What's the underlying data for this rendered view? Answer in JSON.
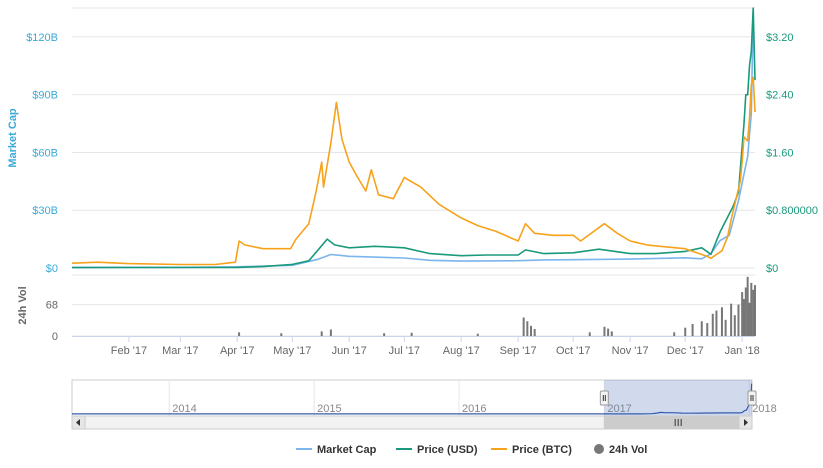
{
  "chart_data": {
    "type": "line",
    "legend_position": "bottom",
    "grid": true,
    "x_tick_labels": [
      "Feb '17",
      "Mar '17",
      "Apr '17",
      "May '17",
      "Jun '17",
      "Jul '17",
      "Aug '17",
      "Sep '17",
      "Oct '17",
      "Nov '17",
      "Dec '17",
      "Jan '18"
    ],
    "x_range": [
      "2017-01-01",
      "2018-01-08"
    ],
    "y_left": {
      "label": "Market Cap",
      "ticks": [
        "$0",
        "$30B",
        "$60B",
        "$90B",
        "$120B"
      ],
      "range": [
        0,
        120
      ],
      "unit": "B USD"
    },
    "y_right": {
      "ticks": [
        "$0",
        "$0.800000",
        "$1.60",
        "$2.40",
        "$3.20"
      ],
      "range": [
        0,
        3.2
      ],
      "unit": "USD"
    },
    "volume_axis": {
      "label": "24h Vol",
      "ticks": [
        "0",
        "68"
      ]
    },
    "series": [
      {
        "name": "Market Cap",
        "axis": "left",
        "color": "#7cb5ec",
        "points": [
          [
            "2017-01-01",
            0.3
          ],
          [
            "2017-03-01",
            0.35
          ],
          [
            "2017-04-01",
            0.6
          ],
          [
            "2017-05-01",
            1.4
          ],
          [
            "2017-05-15",
            4.5
          ],
          [
            "2017-05-22",
            7
          ],
          [
            "2017-06-01",
            6.1
          ],
          [
            "2017-07-01",
            5.2
          ],
          [
            "2017-07-15",
            4
          ],
          [
            "2017-08-01",
            3.6
          ],
          [
            "2017-09-01",
            3.8
          ],
          [
            "2017-09-15",
            4.2
          ],
          [
            "2017-10-01",
            4.3
          ],
          [
            "2017-11-01",
            4.6
          ],
          [
            "2017-12-01",
            5.3
          ],
          [
            "2017-12-10",
            4.8
          ],
          [
            "2017-12-15",
            7.4
          ],
          [
            "2017-12-20",
            14.3
          ],
          [
            "2017-12-25",
            17
          ],
          [
            "2017-12-30",
            35
          ],
          [
            "2018-01-04",
            58
          ],
          [
            "2018-01-06",
            80
          ],
          [
            "2018-01-07",
            133
          ]
        ]
      },
      {
        "name": "Price (USD)",
        "axis": "right",
        "color": "#1a9a7c",
        "points": [
          [
            "2017-01-01",
            0.006
          ],
          [
            "2017-02-01",
            0.007
          ],
          [
            "2017-03-01",
            0.007
          ],
          [
            "2017-04-01",
            0.008
          ],
          [
            "2017-04-15",
            0.02
          ],
          [
            "2017-05-01",
            0.05
          ],
          [
            "2017-05-10",
            0.1
          ],
          [
            "2017-05-16",
            0.28
          ],
          [
            "2017-05-20",
            0.4
          ],
          [
            "2017-05-24",
            0.32
          ],
          [
            "2017-06-01",
            0.28
          ],
          [
            "2017-06-15",
            0.3
          ],
          [
            "2017-07-01",
            0.28
          ],
          [
            "2017-07-15",
            0.2
          ],
          [
            "2017-08-01",
            0.17
          ],
          [
            "2017-08-15",
            0.18
          ],
          [
            "2017-09-01",
            0.18
          ],
          [
            "2017-09-05",
            0.25
          ],
          [
            "2017-09-15",
            0.2
          ],
          [
            "2017-10-01",
            0.21
          ],
          [
            "2017-10-15",
            0.26
          ],
          [
            "2017-11-01",
            0.2
          ],
          [
            "2017-11-15",
            0.2
          ],
          [
            "2017-12-01",
            0.23
          ],
          [
            "2017-12-10",
            0.28
          ],
          [
            "2017-12-15",
            0.19
          ],
          [
            "2017-12-20",
            0.5
          ],
          [
            "2017-12-24",
            0.7
          ],
          [
            "2017-12-27",
            0.85
          ],
          [
            "2017-12-30",
            1.05
          ],
          [
            "2018-01-02",
            2.0
          ],
          [
            "2018-01-03",
            2.4
          ],
          [
            "2018-01-04",
            2.4
          ],
          [
            "2018-01-05",
            2.8
          ],
          [
            "2018-01-06",
            3.0
          ],
          [
            "2018-01-07",
            3.6
          ],
          [
            "2018-01-08",
            2.6
          ]
        ]
      },
      {
        "name": "Price (BTC)",
        "axis": "left",
        "color": "#f7a21b",
        "points": [
          [
            "2017-01-01",
            2.5
          ],
          [
            "2017-01-15",
            3
          ],
          [
            "2017-02-01",
            2.3
          ],
          [
            "2017-03-01",
            1.8
          ],
          [
            "2017-03-20",
            1.8
          ],
          [
            "2017-03-31",
            3
          ],
          [
            "2017-04-02",
            14
          ],
          [
            "2017-04-05",
            12
          ],
          [
            "2017-04-15",
            10
          ],
          [
            "2017-04-30",
            10
          ],
          [
            "2017-05-03",
            15
          ],
          [
            "2017-05-10",
            23
          ],
          [
            "2017-05-14",
            40
          ],
          [
            "2017-05-17",
            55
          ],
          [
            "2017-05-18",
            42
          ],
          [
            "2017-05-22",
            65
          ],
          [
            "2017-05-25",
            86
          ],
          [
            "2017-05-28",
            67
          ],
          [
            "2017-06-01",
            55
          ],
          [
            "2017-06-05",
            48
          ],
          [
            "2017-06-10",
            40
          ],
          [
            "2017-06-13",
            51
          ],
          [
            "2017-06-17",
            38
          ],
          [
            "2017-06-25",
            36
          ],
          [
            "2017-07-01",
            47
          ],
          [
            "2017-07-10",
            42
          ],
          [
            "2017-07-20",
            33
          ],
          [
            "2017-08-01",
            26
          ],
          [
            "2017-08-10",
            22
          ],
          [
            "2017-08-20",
            19
          ],
          [
            "2017-09-01",
            14
          ],
          [
            "2017-09-05",
            23
          ],
          [
            "2017-09-10",
            18
          ],
          [
            "2017-09-20",
            17
          ],
          [
            "2017-10-01",
            17
          ],
          [
            "2017-10-05",
            14
          ],
          [
            "2017-10-18",
            23
          ],
          [
            "2017-10-25",
            18
          ],
          [
            "2017-11-01",
            14
          ],
          [
            "2017-11-10",
            12
          ],
          [
            "2017-11-20",
            11
          ],
          [
            "2017-12-01",
            10
          ],
          [
            "2017-12-10",
            7
          ],
          [
            "2017-12-13",
            6
          ],
          [
            "2017-12-15",
            5
          ],
          [
            "2017-12-18",
            7
          ],
          [
            "2017-12-21",
            9
          ],
          [
            "2017-12-24",
            16
          ],
          [
            "2017-12-26",
            25
          ],
          [
            "2017-12-29",
            37
          ],
          [
            "2017-12-31",
            45
          ],
          [
            "2018-01-01",
            55
          ],
          [
            "2018-01-02",
            68
          ],
          [
            "2018-01-04",
            66
          ],
          [
            "2018-01-05",
            78
          ],
          [
            "2018-01-06",
            95
          ],
          [
            "2018-01-07",
            99
          ],
          [
            "2018-01-08",
            81
          ]
        ]
      },
      {
        "name": "24h Vol",
        "axis": "volume",
        "color": "#777777",
        "type": "column",
        "points": [
          [
            "2017-04-02",
            8
          ],
          [
            "2017-04-25",
            6
          ],
          [
            "2017-05-17",
            10
          ],
          [
            "2017-05-22",
            14
          ],
          [
            "2017-06-20",
            6
          ],
          [
            "2017-07-05",
            7
          ],
          [
            "2017-08-10",
            5
          ],
          [
            "2017-09-04",
            40
          ],
          [
            "2017-09-06",
            32
          ],
          [
            "2017-09-08",
            22
          ],
          [
            "2017-09-10",
            15
          ],
          [
            "2017-10-10",
            8
          ],
          [
            "2017-10-18",
            20
          ],
          [
            "2017-10-20",
            16
          ],
          [
            "2017-10-22",
            10
          ],
          [
            "2017-11-25",
            8
          ],
          [
            "2017-12-01",
            18
          ],
          [
            "2017-12-05",
            26
          ],
          [
            "2017-12-10",
            32
          ],
          [
            "2017-12-13",
            28
          ],
          [
            "2017-12-16",
            48
          ],
          [
            "2017-12-18",
            55
          ],
          [
            "2017-12-21",
            62
          ],
          [
            "2017-12-23",
            35
          ],
          [
            "2017-12-26",
            70
          ],
          [
            "2017-12-28",
            45
          ],
          [
            "2017-12-30",
            68
          ],
          [
            "2018-01-01",
            95
          ],
          [
            "2018-01-02",
            80
          ],
          [
            "2018-01-03",
            105
          ],
          [
            "2018-01-04",
            128
          ],
          [
            "2018-01-05",
            72
          ],
          [
            "2018-01-06",
            115
          ],
          [
            "2018-01-07",
            100
          ],
          [
            "2018-01-08",
            110
          ]
        ]
      }
    ],
    "navigator": {
      "x_labels": [
        "2014",
        "2015",
        "2016",
        "2017",
        "2018"
      ],
      "selected_range": [
        "2017-01-01",
        "2018-01-08"
      ]
    }
  }
}
